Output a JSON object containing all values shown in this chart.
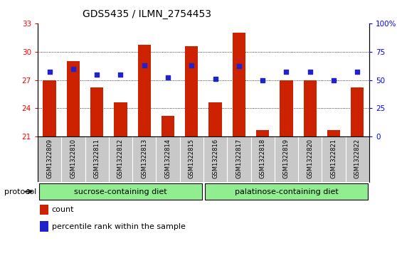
{
  "title": "GDS5435 / ILMN_2754453",
  "samples": [
    "GSM1322809",
    "GSM1322810",
    "GSM1322811",
    "GSM1322812",
    "GSM1322813",
    "GSM1322814",
    "GSM1322815",
    "GSM1322816",
    "GSM1322817",
    "GSM1322818",
    "GSM1322819",
    "GSM1322820",
    "GSM1322821",
    "GSM1322822"
  ],
  "bar_values": [
    27.0,
    29.0,
    26.2,
    24.6,
    30.7,
    23.2,
    30.6,
    24.6,
    32.0,
    21.7,
    27.0,
    27.0,
    21.7,
    26.2
  ],
  "percentile_values": [
    57,
    60,
    55,
    55,
    63,
    52,
    63,
    51,
    62,
    50,
    57,
    57,
    50,
    57
  ],
  "bar_color": "#cc2200",
  "percentile_color": "#2222cc",
  "ylim_left": [
    21,
    33
  ],
  "ylim_right": [
    0,
    100
  ],
  "yticks_left": [
    21,
    24,
    27,
    30,
    33
  ],
  "yticks_right": [
    0,
    25,
    50,
    75,
    100
  ],
  "ytick_labels_right": [
    "0",
    "25",
    "50",
    "75",
    "100%"
  ],
  "group1_label": "sucrose-containing diet",
  "group2_label": "palatinose-containing diet",
  "group_color": "#90ee90",
  "protocol_label": "protocol",
  "bar_bottom": 21.0,
  "bar_width": 0.55,
  "title_fontsize": 10,
  "tick_fontsize": 7.5,
  "label_fontsize": 8
}
